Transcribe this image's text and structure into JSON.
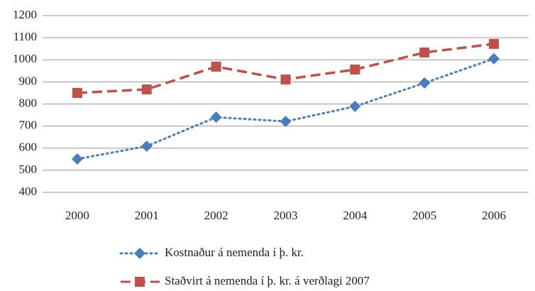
{
  "chart_data": {
    "type": "line",
    "categories": [
      "2000",
      "2001",
      "2002",
      "2003",
      "2004",
      "2005",
      "2006"
    ],
    "series": [
      {
        "name": "Kostnaður á nemenda í þ. kr.",
        "color": "#4a7ebb",
        "values": [
          551,
          609,
          740,
          721,
          789,
          895,
          1005
        ]
      },
      {
        "name": "Staðvirt á nemenda í þ. kr. á verðlagi 2007",
        "color": "#c0504d",
        "values": [
          850,
          866,
          969,
          911,
          956,
          1033,
          1072
        ]
      }
    ],
    "ylim": [
      400,
      1200
    ],
    "yticks": [
      400,
      500,
      600,
      700,
      800,
      900,
      1000,
      1100,
      1200
    ],
    "grid": true,
    "legend": "bottom"
  }
}
